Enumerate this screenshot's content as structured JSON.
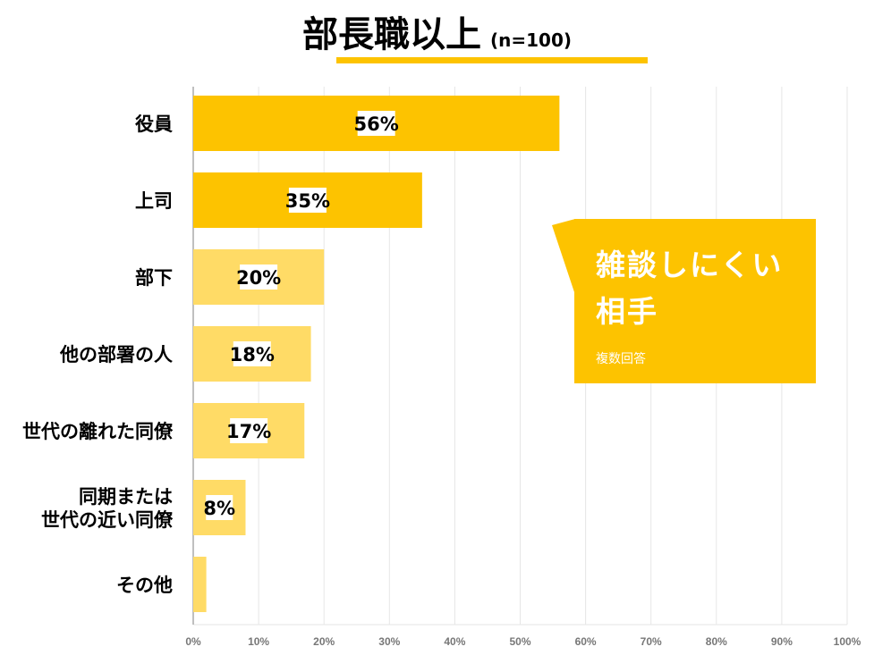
{
  "chart_data": {
    "type": "bar",
    "orientation": "horizontal",
    "title": "部長職以上",
    "subtitle": "(n=100)",
    "categories": [
      "役員",
      "上司",
      "部下",
      "他の部署の人",
      "世代の離れた同僚",
      "同期または\n世代の近い同僚",
      "その他"
    ],
    "values": [
      56,
      35,
      20,
      18,
      17,
      8,
      2
    ],
    "value_labels": [
      "56%",
      "35%",
      "20%",
      "18%",
      "17%",
      "8%",
      ""
    ],
    "xlim": [
      0,
      100
    ],
    "x_ticks": [
      "0%",
      "10%",
      "20%",
      "30%",
      "40%",
      "50%",
      "60%",
      "70%",
      "80%",
      "90%",
      "100%"
    ],
    "grid": true,
    "highlight_count": 2
  },
  "callout": {
    "title_line1": "雑談しにくい",
    "title_line2": "相手",
    "note": "複数回答"
  },
  "colors": {
    "accent": "#FDC300",
    "light": "#FFDB66",
    "grid": "#e6e6e6",
    "tick": "#777777"
  }
}
